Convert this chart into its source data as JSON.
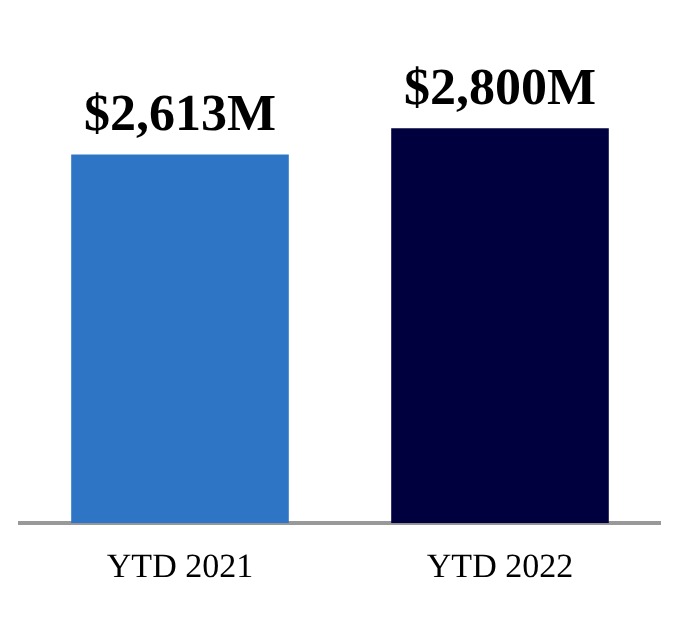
{
  "chart_data": {
    "type": "bar",
    "categories": [
      "YTD 2021",
      "YTD 2022"
    ],
    "values": [
      2613,
      2800
    ],
    "colors": [
      "#2e75c6",
      "#00003f"
    ],
    "value_labels": [
      "$2,613M",
      "$2,800M"
    ],
    "grid": false,
    "legend": false
  }
}
